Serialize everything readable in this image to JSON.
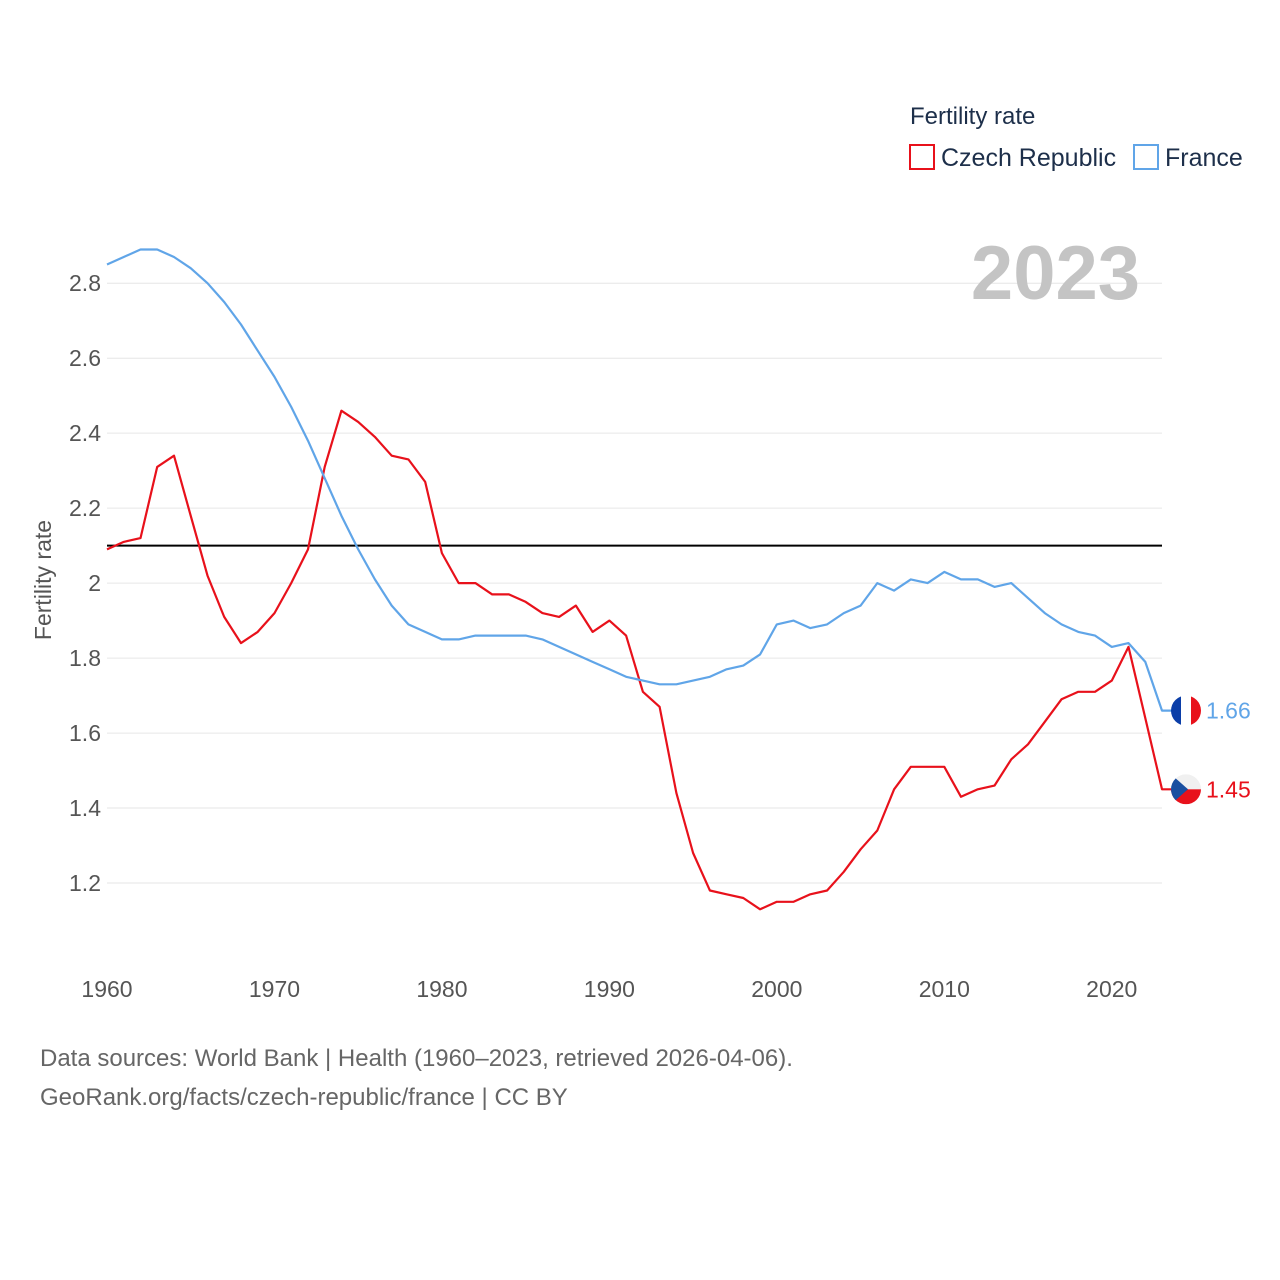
{
  "chart_data": {
    "type": "line",
    "legend_title": "Fertility rate",
    "ylabel": "Fertility rate",
    "xlabel": "",
    "xlim": [
      1960,
      2023
    ],
    "ylim": [
      1.0,
      2.95
    ],
    "yticks": [
      1.2,
      1.4,
      1.6,
      1.8,
      2.0,
      2.2,
      2.4,
      2.6,
      2.8
    ],
    "ytick_labels": [
      "1.2",
      "1.4",
      "1.6",
      "1.8",
      "2",
      "2.2",
      "2.4",
      "2.6",
      "2.8"
    ],
    "xticks": [
      1960,
      1970,
      1980,
      1990,
      2000,
      2010,
      2020
    ],
    "xtick_labels": [
      "1960",
      "1970",
      "1980",
      "1990",
      "2000",
      "2010",
      "2020"
    ],
    "reference_line": 2.1,
    "year_label": "2023",
    "series": [
      {
        "name": "Czech Republic",
        "color": "#e8111b",
        "end_label": "1.45",
        "flag": "czech-flag",
        "x": [
          1960,
          1961,
          1962,
          1963,
          1964,
          1965,
          1966,
          1967,
          1968,
          1969,
          1970,
          1971,
          1972,
          1973,
          1974,
          1975,
          1976,
          1977,
          1978,
          1979,
          1980,
          1981,
          1982,
          1983,
          1984,
          1985,
          1986,
          1987,
          1988,
          1989,
          1990,
          1991,
          1992,
          1993,
          1994,
          1995,
          1996,
          1997,
          1998,
          1999,
          2000,
          2001,
          2002,
          2003,
          2004,
          2005,
          2006,
          2007,
          2008,
          2009,
          2010,
          2011,
          2012,
          2013,
          2014,
          2015,
          2016,
          2017,
          2018,
          2019,
          2020,
          2021,
          2022,
          2023
        ],
        "values": [
          2.09,
          2.11,
          2.12,
          2.31,
          2.34,
          2.18,
          2.02,
          1.91,
          1.84,
          1.87,
          1.92,
          2.0,
          2.09,
          2.31,
          2.46,
          2.43,
          2.39,
          2.34,
          2.33,
          2.27,
          2.08,
          2.0,
          2.0,
          1.97,
          1.97,
          1.95,
          1.92,
          1.91,
          1.94,
          1.87,
          1.9,
          1.86,
          1.71,
          1.67,
          1.44,
          1.28,
          1.18,
          1.17,
          1.16,
          1.13,
          1.15,
          1.15,
          1.17,
          1.18,
          1.23,
          1.29,
          1.34,
          1.45,
          1.51,
          1.51,
          1.51,
          1.43,
          1.45,
          1.46,
          1.53,
          1.57,
          1.63,
          1.69,
          1.71,
          1.71,
          1.74,
          1.83,
          1.64,
          1.45
        ]
      },
      {
        "name": "France",
        "color": "#60a5e8",
        "end_label": "1.66",
        "flag": "france-flag",
        "x": [
          1960,
          1961,
          1962,
          1963,
          1964,
          1965,
          1966,
          1967,
          1968,
          1969,
          1970,
          1971,
          1972,
          1973,
          1974,
          1975,
          1976,
          1977,
          1978,
          1979,
          1980,
          1981,
          1982,
          1983,
          1984,
          1985,
          1986,
          1987,
          1988,
          1989,
          1990,
          1991,
          1992,
          1993,
          1994,
          1995,
          1996,
          1997,
          1998,
          1999,
          2000,
          2001,
          2002,
          2003,
          2004,
          2005,
          2006,
          2007,
          2008,
          2009,
          2010,
          2011,
          2012,
          2013,
          2014,
          2015,
          2016,
          2017,
          2018,
          2019,
          2020,
          2021,
          2022,
          2023
        ],
        "values": [
          2.85,
          2.87,
          2.89,
          2.89,
          2.87,
          2.84,
          2.8,
          2.75,
          2.69,
          2.62,
          2.55,
          2.47,
          2.38,
          2.28,
          2.18,
          2.09,
          2.01,
          1.94,
          1.89,
          1.87,
          1.85,
          1.85,
          1.86,
          1.86,
          1.86,
          1.86,
          1.85,
          1.83,
          1.81,
          1.79,
          1.77,
          1.75,
          1.74,
          1.73,
          1.73,
          1.74,
          1.75,
          1.77,
          1.78,
          1.81,
          1.89,
          1.9,
          1.88,
          1.89,
          1.92,
          1.94,
          2.0,
          1.98,
          2.01,
          2.0,
          2.03,
          2.01,
          2.01,
          1.99,
          2.0,
          1.96,
          1.92,
          1.89,
          1.87,
          1.86,
          1.83,
          1.84,
          1.79,
          1.66
        ]
      }
    ]
  },
  "source": {
    "line1": "Data sources: World Bank | Health (1960–2023, retrieved 2026-04-06).",
    "line2": "GeoRank.org/facts/czech-republic/france | CC BY"
  }
}
